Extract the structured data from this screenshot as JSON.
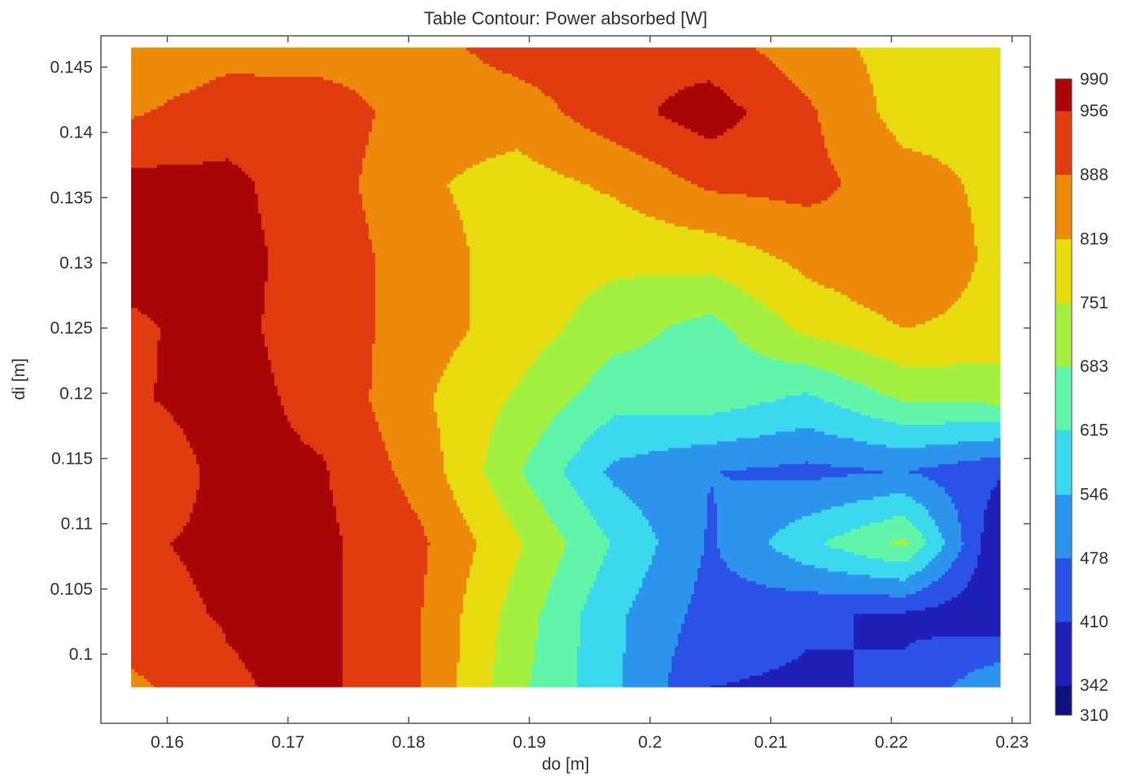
{
  "chart_data": {
    "type": "heatmap",
    "subtype": "filled-contour",
    "title": "Table Contour: Power absorbed [W]",
    "xlabel": "do [m]",
    "ylabel": "di [m]",
    "xlim": [
      0.1545,
      0.2315
    ],
    "ylim": [
      0.0947,
      0.1474
    ],
    "data_extent": {
      "x": [
        0.157,
        0.229
      ],
      "y": [
        0.0975,
        0.1465
      ]
    },
    "x_ticks": [
      0.16,
      0.17,
      0.18,
      0.19,
      0.2,
      0.21,
      0.22,
      0.23
    ],
    "x_tick_labels": [
      "0.16",
      "0.17",
      "0.18",
      "0.19",
      "0.2",
      "0.21",
      "0.22",
      "0.23"
    ],
    "y_ticks": [
      0.1,
      0.105,
      0.11,
      0.115,
      0.12,
      0.125,
      0.13,
      0.135,
      0.14,
      0.145
    ],
    "y_tick_labels": [
      "0.1",
      "0.105",
      "0.11",
      "0.115",
      "0.12",
      "0.125",
      "0.13",
      "0.135",
      "0.14",
      "0.145"
    ],
    "colorbar": {
      "levels": [
        310,
        342,
        410,
        478,
        546,
        615,
        683,
        751,
        819,
        888,
        956,
        990
      ],
      "labels": [
        "310",
        "342",
        "410",
        "478",
        "546",
        "615",
        "683",
        "751",
        "819",
        "888",
        "956",
        "990"
      ],
      "colors": [
        "#10107e",
        "#2020b8",
        "#2a52e6",
        "#2c94ec",
        "#3ad9ee",
        "#60f5a8",
        "#a4f040",
        "#e6dc10",
        "#ee8a0a",
        "#e03c10",
        "#a80606"
      ]
    },
    "grid": false,
    "x": [
      0.157,
      0.165,
      0.173,
      0.181,
      0.189,
      0.197,
      0.205,
      0.213,
      0.221,
      0.229
    ],
    "y": [
      0.0975,
      0.103,
      0.1085,
      0.114,
      0.1195,
      0.125,
      0.1305,
      0.136,
      0.1415,
      0.1465
    ],
    "z": [
      [
        870,
        950,
        970,
        890,
        700,
        560,
        410,
        400,
        420,
        540
      ],
      [
        940,
        960,
        970,
        890,
        720,
        560,
        450,
        420,
        400,
        360
      ],
      [
        950,
        965,
        970,
        900,
        760,
        610,
        470,
        600,
        700,
        340
      ],
      [
        920,
        970,
        960,
        860,
        690,
        530,
        480,
        460,
        480,
        420
      ],
      [
        950,
        975,
        940,
        830,
        740,
        640,
        650,
        600,
        690,
        700
      ],
      [
        950,
        970,
        930,
        850,
        790,
        710,
        660,
        770,
        820,
        800
      ],
      [
        970,
        975,
        930,
        850,
        790,
        770,
        780,
        840,
        880,
        800
      ],
      [
        980,
        970,
        920,
        830,
        790,
        830,
        900,
        910,
        850,
        800
      ],
      [
        880,
        930,
        930,
        850,
        850,
        930,
        990,
        900,
        790,
        800
      ],
      [
        820,
        860,
        850,
        860,
        920,
        940,
        920,
        850,
        790,
        790
      ]
    ]
  }
}
